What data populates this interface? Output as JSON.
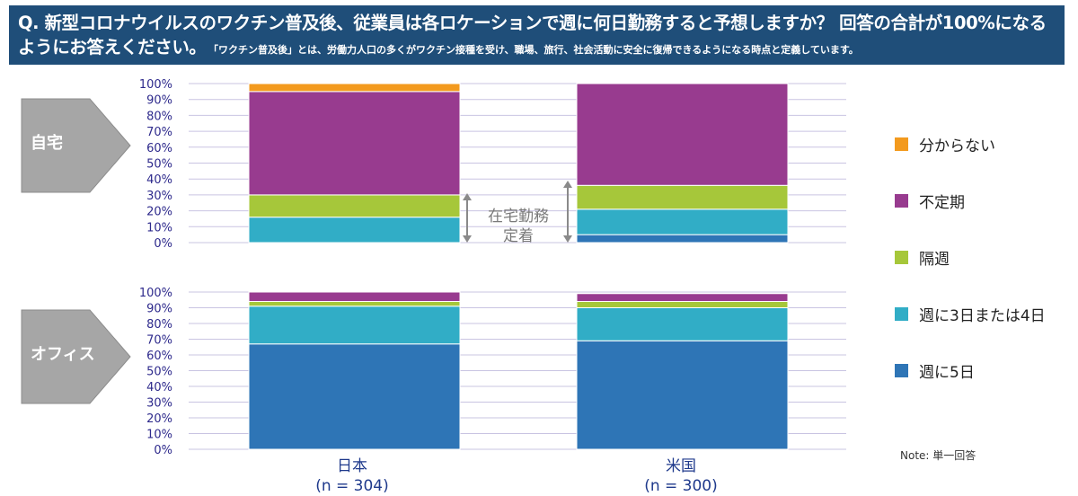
{
  "header": {
    "question": "Q. 新型コロナウイルスのワクチン普及後、従業員は各ロケーションで週に何日勤務すると予想しますか？ 回答の合計が100%になるようにお答えください。",
    "note": "「ワクチン普及後」とは、労働力人口の多くがワクチン接種を受け、職場、旅行、社会活動に安全に復帰できるようになる時点と定義しています。"
  },
  "annotation": "在宅勤務\n定着",
  "footnote": "Note: 単一回答",
  "colors": {
    "header_bg": "#1f4e79",
    "grid": "#c9c4e2",
    "tick_text": "#2e2a8c",
    "arrow_fill": "#a6a6a6"
  },
  "chart_data": [
    {
      "type": "bar",
      "stacked": true,
      "panel_label": "自宅",
      "categories": [
        "日本",
        "米国"
      ],
      "category_sublabels": [
        "(n = 304)",
        "(n = 300)"
      ],
      "ylim": [
        0,
        100
      ],
      "yticks": [
        "0%",
        "10%",
        "20%",
        "30%",
        "40%",
        "50%",
        "60%",
        "70%",
        "80%",
        "90%",
        "100%"
      ],
      "grid": true,
      "legend_position": "right",
      "series": [
        {
          "name": "週に5日",
          "color": "#2e75b6",
          "values": [
            0,
            5
          ]
        },
        {
          "name": "週に3日または4日",
          "color": "#31adc6",
          "values": [
            16,
            16
          ]
        },
        {
          "name": "隔週",
          "color": "#a6c73a",
          "values": [
            14,
            15
          ]
        },
        {
          "name": "不定期",
          "color": "#983b8f",
          "values": [
            65,
            64
          ]
        },
        {
          "name": "分からない",
          "color": "#f39a1e",
          "values": [
            5,
            0
          ]
        }
      ]
    },
    {
      "type": "bar",
      "stacked": true,
      "panel_label": "オフィス",
      "categories": [
        "日本",
        "米国"
      ],
      "category_sublabels": [
        "(n = 304)",
        "(n = 300)"
      ],
      "ylim": [
        0,
        100
      ],
      "yticks": [
        "0%",
        "10%",
        "20%",
        "30%",
        "40%",
        "50%",
        "60%",
        "70%",
        "80%",
        "90%",
        "100%"
      ],
      "grid": true,
      "legend_position": "right",
      "series": [
        {
          "name": "週に5日",
          "color": "#2e75b6",
          "values": [
            67,
            69
          ]
        },
        {
          "name": "週に3日または4日",
          "color": "#31adc6",
          "values": [
            24,
            21
          ]
        },
        {
          "name": "隔週",
          "color": "#a6c73a",
          "values": [
            3,
            4
          ]
        },
        {
          "name": "不定期",
          "color": "#983b8f",
          "values": [
            6,
            5
          ]
        },
        {
          "name": "分からない",
          "color": "#f39a1e",
          "values": [
            0,
            0
          ]
        }
      ]
    }
  ]
}
